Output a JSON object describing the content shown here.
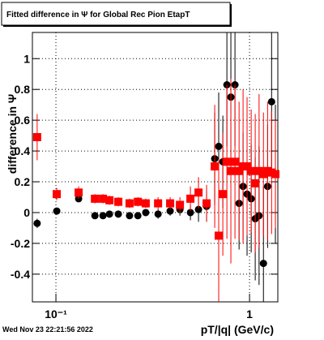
{
  "chart_data": {
    "type": "scatter",
    "title": "Fitted difference in  Ψ  for Global Rec Pion EtapT",
    "x_label": "pT/|q| (GeV/c)",
    "y_label": "difference in  Ψ",
    "date": "Wed Nov 23 22:21:56 2022",
    "xlog": true,
    "xlim": [
      0.0756,
      1.4
    ],
    "ylim": [
      -0.58,
      1.17
    ],
    "xticks": [
      {
        "value": 0.1,
        "label": "10⁻¹"
      },
      1
    ],
    "yticks": [
      -0.4,
      -0.2,
      0,
      0.2,
      0.4,
      0.6,
      0.8,
      1
    ],
    "grid": true,
    "series": [
      {
        "color": "#000000",
        "marker": "circle",
        "x": [
          0.08,
          0.101,
          0.131,
          0.159,
          0.175,
          0.189,
          0.21,
          0.24,
          0.265,
          0.291,
          0.337,
          0.389,
          0.437,
          0.495,
          0.545,
          0.6,
          0.661,
          0.693,
          0.728,
          0.764,
          0.801,
          0.841,
          0.883,
          0.926,
          0.971,
          1.02,
          1.07,
          1.12,
          1.18,
          1.24,
          1.3,
          1.36
        ],
        "values": [
          -0.07,
          0.01,
          0.09,
          -0.02,
          -0.02,
          -0.01,
          -0.01,
          -0.02,
          -0.02,
          0,
          -0.01,
          0.01,
          0.02,
          0,
          0.02,
          0.04,
          0.35,
          0.43,
          0.33,
          0.83,
          0.75,
          0.83,
          0.06,
          0.17,
          0.12,
          0.09,
          -0.04,
          -0.02,
          -0.33,
          0.17,
          0.72,
          0.25
        ],
        "errors": [
          0.03,
          0.02,
          0.02,
          0.02,
          0.02,
          0.02,
          0.02,
          0.02,
          0.02,
          0.02,
          0.03,
          0.03,
          0.04,
          0.05,
          0.08,
          0.1,
          0.3,
          0.35,
          0.3,
          0.4,
          0.45,
          0.4,
          0.3,
          0.35,
          0.4,
          0.35,
          0.4,
          0.45,
          0.5,
          0.4,
          0.5,
          0.45
        ]
      },
      {
        "color": "#ff0000",
        "marker": "square",
        "x": [
          0.08,
          0.101,
          0.131,
          0.159,
          0.175,
          0.189,
          0.21,
          0.24,
          0.265,
          0.291,
          0.337,
          0.389,
          0.437,
          0.495,
          0.545,
          0.6,
          0.661,
          0.693,
          0.728,
          0.764,
          0.801,
          0.841,
          0.883,
          0.926,
          0.971,
          1.02,
          1.07,
          1.12,
          1.18,
          1.24,
          1.3,
          1.36
        ],
        "values": [
          0.49,
          0.12,
          0.13,
          0.09,
          0.09,
          0.08,
          0.07,
          0.06,
          0.07,
          0.06,
          0.06,
          0.06,
          0.05,
          0.09,
          0.13,
          0.06,
          0.3,
          -0.15,
          0.12,
          0.33,
          0.27,
          0.33,
          0.27,
          0.3,
          0.3,
          0.27,
          0.19,
          0.27,
          0.25,
          0.27,
          0.26,
          0.25
        ],
        "errors": [
          0.15,
          0.04,
          0.04,
          0.03,
          0.03,
          0.03,
          0.03,
          0.03,
          0.03,
          0.03,
          0.04,
          0.04,
          0.05,
          0.08,
          0.1,
          0.12,
          0.4,
          0.5,
          0.4,
          0.5,
          0.6,
          0.5,
          0.45,
          0.5,
          0.45,
          0.4,
          0.45,
          0.5,
          0.4,
          0.45,
          0.4,
          0.35
        ]
      }
    ]
  }
}
